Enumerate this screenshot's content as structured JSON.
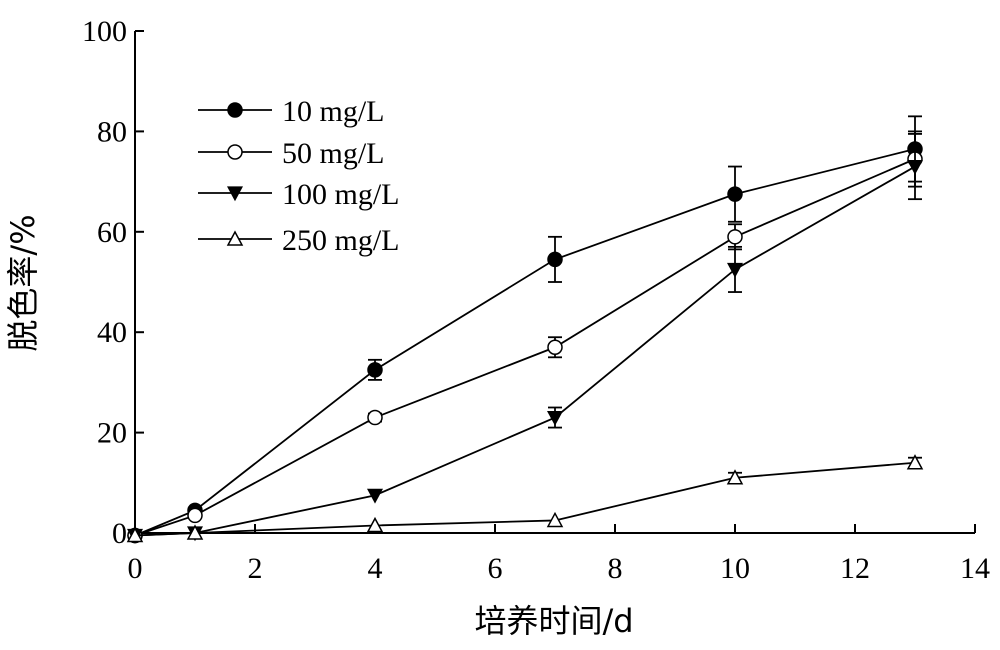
{
  "chart_data": {
    "type": "line",
    "xlabel": "培养时间/d",
    "ylabel": "脱色率/%",
    "xlim": [
      0,
      14
    ],
    "ylim": [
      0,
      100
    ],
    "xticks": [
      0,
      2,
      4,
      6,
      8,
      10,
      12,
      14
    ],
    "yticks": [
      0,
      20,
      40,
      60,
      80,
      100
    ],
    "grid": false,
    "legend_position": "top-left",
    "x": [
      0,
      1,
      4,
      7,
      10,
      13
    ],
    "series": [
      {
        "name": "10 mg/L",
        "marker": "filled-circle",
        "values": [
          -0.5,
          4.5,
          32.5,
          54.5,
          67.5,
          76.5
        ],
        "errors": [
          0,
          0,
          2,
          4.5,
          5.5,
          6.5
        ]
      },
      {
        "name": "50 mg/L",
        "marker": "open-circle",
        "values": [
          -0.5,
          3.5,
          23,
          37,
          59,
          74.5
        ],
        "errors": [
          0,
          0,
          0.8,
          2,
          2.5,
          5.5
        ]
      },
      {
        "name": "100 mg/L",
        "marker": "filled-triangle-down",
        "values": [
          -0.5,
          0,
          7.5,
          23,
          52.5,
          73
        ],
        "errors": [
          0,
          0,
          0,
          2,
          4.5,
          6.5
        ]
      },
      {
        "name": "250 mg/L",
        "marker": "open-triangle-up",
        "values": [
          -0.5,
          0,
          1.5,
          2.5,
          11,
          14
        ],
        "errors": [
          0,
          0,
          0,
          0,
          1,
          1
        ]
      }
    ]
  }
}
